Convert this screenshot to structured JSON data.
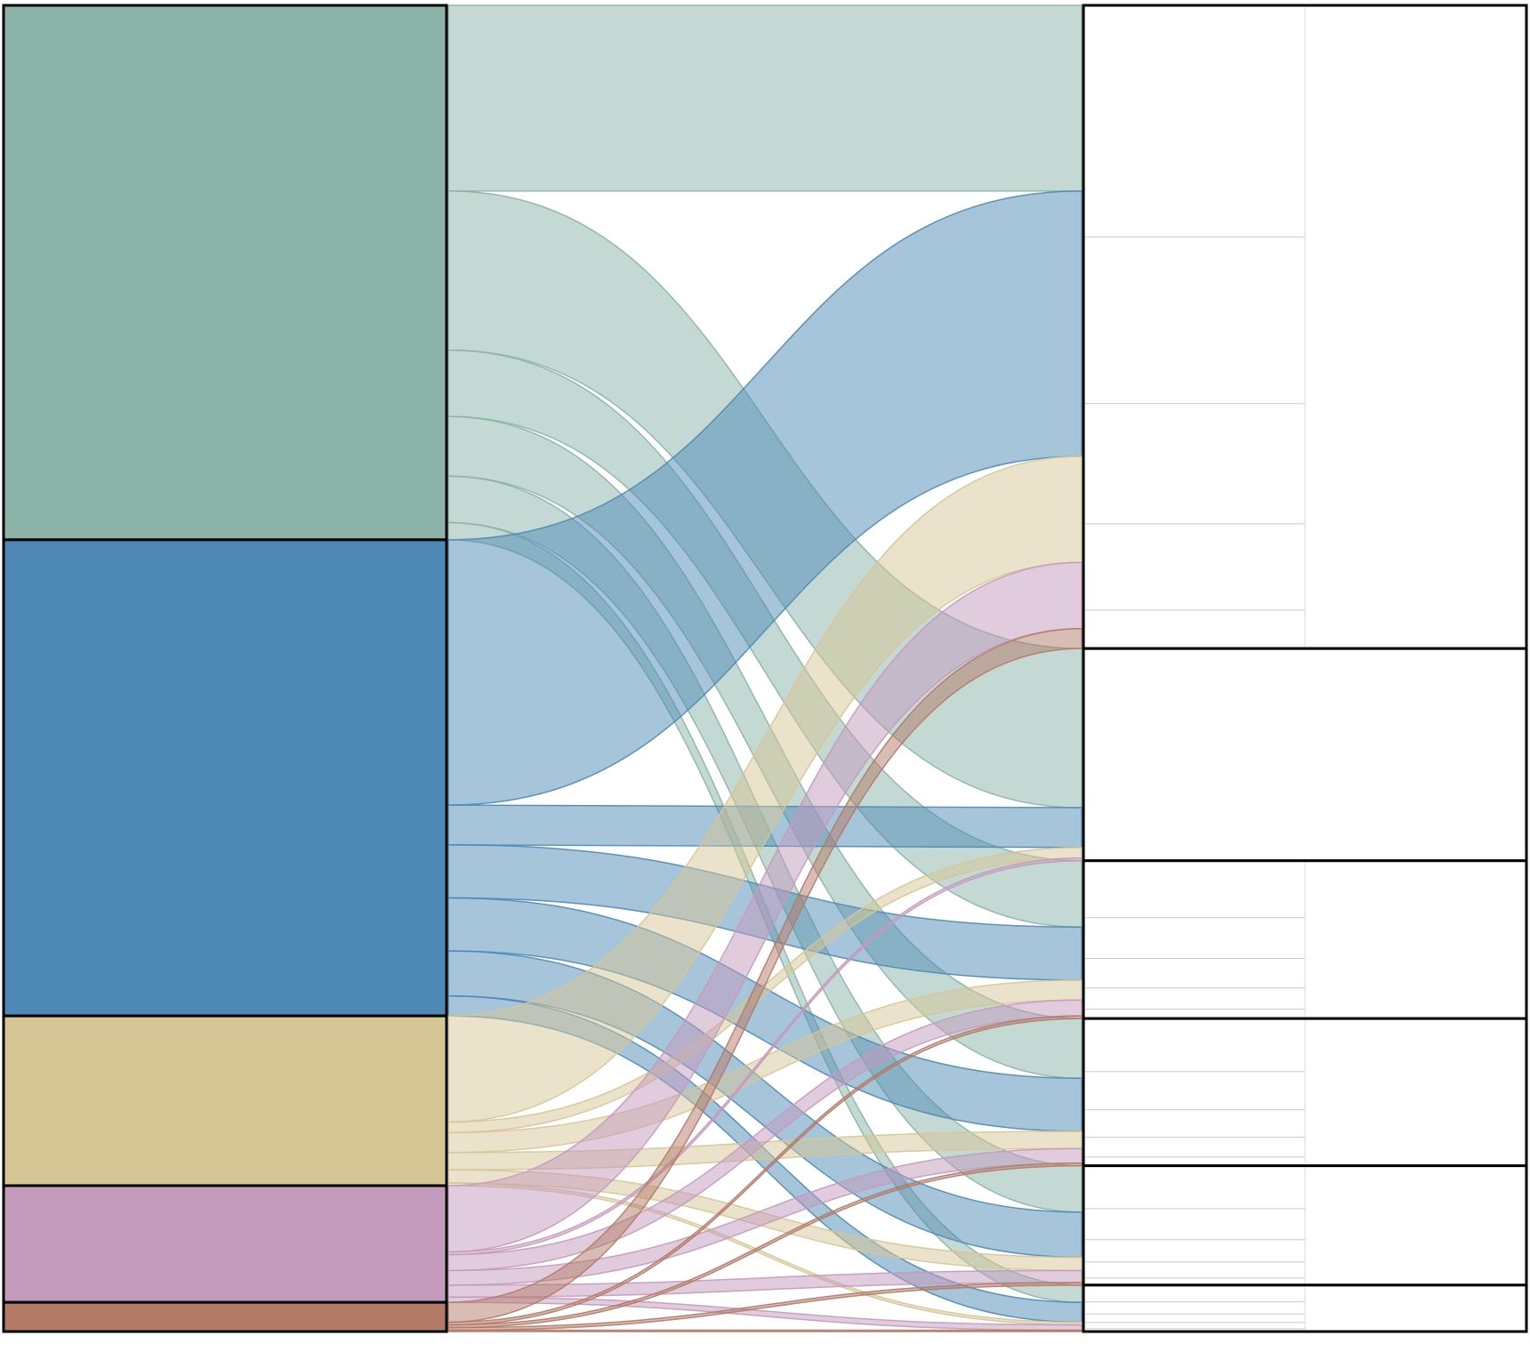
{
  "chart_data": {
    "type": "alluvial",
    "left_colors": [
      "#8bb3a9",
      "#4e89b6",
      "#d6c595",
      "#c49abd",
      "#b37a68"
    ],
    "left_values": [
      40.3,
      35.9,
      12.8,
      8.8,
      2.2
    ],
    "right_values": [
      48.5,
      16.0,
      11.9,
      11.1,
      9.0,
      3.5
    ],
    "flows": [
      [
        14,
        12,
        5,
        4.5,
        3.5,
        1.3
      ],
      [
        20,
        3,
        4,
        4,
        3.4,
        1.5
      ],
      [
        8,
        0.8,
        1.5,
        1.3,
        1,
        0.2
      ],
      [
        5,
        0.2,
        1.2,
        1.1,
        0.9,
        0.4
      ],
      [
        1.5,
        0,
        0.2,
        0.2,
        0.2,
        0.1
      ]
    ]
  }
}
